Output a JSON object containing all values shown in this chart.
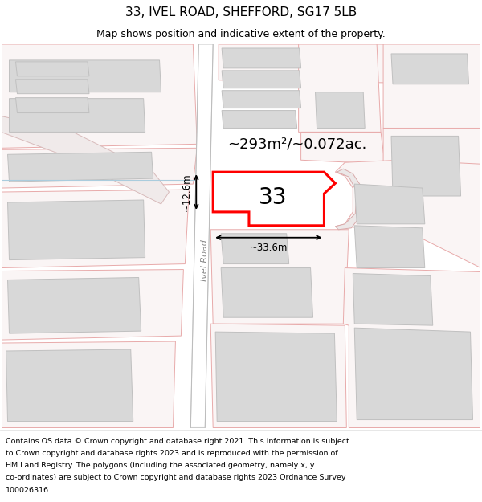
{
  "title": "33, IVEL ROAD, SHEFFORD, SG17 5LB",
  "subtitle": "Map shows position and indicative extent of the property.",
  "area_text": "~293m²/~0.072ac.",
  "property_number": "33",
  "width_label": "~33.6m",
  "height_label": "~12.6m",
  "road_label": "Ivel Road",
  "highlight_color": "#ff0000",
  "road_fill": "#e8e8e8",
  "road_edge": "#cccccc",
  "parcel_fill": "#faf5f5",
  "parcel_edge": "#e8aaaa",
  "building_fill": "#d8d8d8",
  "building_edge": "#c0c0c0",
  "bg_color": "#f8f4f4",
  "title_fontsize": 11,
  "subtitle_fontsize": 9,
  "footer_fontsize": 6.8,
  "footer_lines": [
    "Contains OS data © Crown copyright and database right 2021. This information is subject",
    "to Crown copyright and database rights 2023 and is reproduced with the permission of",
    "HM Land Registry. The polygons (including the associated geometry, namely x, y",
    "co-ordinates) are subject to Crown copyright and database rights 2023 Ordnance Survey",
    "100026316."
  ]
}
